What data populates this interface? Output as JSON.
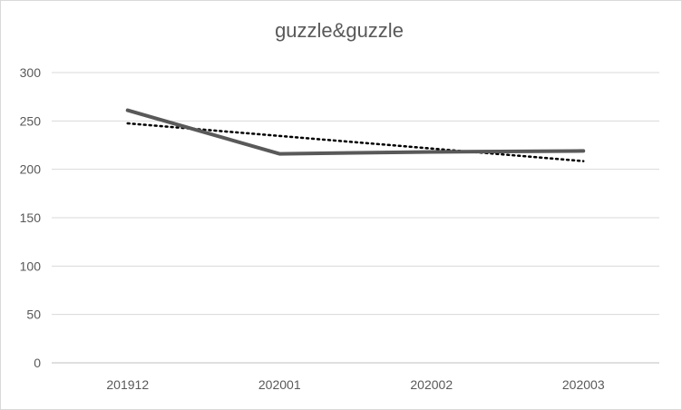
{
  "chart_data": {
    "type": "line",
    "title": "guzzle&guzzle",
    "categories": [
      "201912",
      "202001",
      "202002",
      "202003"
    ],
    "series": [
      {
        "values": [
          261,
          216,
          218,
          219
        ],
        "color": "#595959"
      }
    ],
    "trendline": {
      "type": "linear",
      "values": [
        247.5,
        234.5,
        221.5,
        208.5
      ],
      "color": "#000000",
      "style": "dotted"
    },
    "ylim": [
      0,
      300
    ],
    "yticks": [
      0,
      50,
      100,
      150,
      200,
      250,
      300
    ],
    "grid": true,
    "legend": "none"
  }
}
